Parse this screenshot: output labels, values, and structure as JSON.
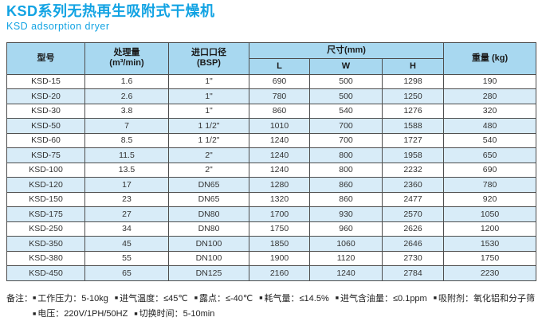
{
  "header": {
    "title_cn": "KSD系列无热再生吸附式干燥机",
    "title_en": "KSD adsorption dryer"
  },
  "colors": {
    "accent": "#12a3e3",
    "header_bg": "#a8d8f0",
    "row_alt_bg": "#d8ecf8",
    "border": "#4d4d4d",
    "text": "#333333"
  },
  "table": {
    "headers": {
      "model": "型号",
      "capacity_line1": "处理量",
      "capacity_line2": "(m³/min)",
      "inlet_line1": "进口口径",
      "inlet_line2": "(BSP)",
      "dimensions": "尺寸(mm)",
      "dim_l": "L",
      "dim_w": "W",
      "dim_h": "H",
      "weight": "重量 (kg)"
    },
    "rows": [
      {
        "model": "KSD-15",
        "capacity": "1.6",
        "inlet": "1\"",
        "l": "690",
        "w": "500",
        "h": "1298",
        "weight": "190"
      },
      {
        "model": "KSD-20",
        "capacity": "2.6",
        "inlet": "1\"",
        "l": "780",
        "w": "500",
        "h": "1250",
        "weight": "280"
      },
      {
        "model": "KSD-30",
        "capacity": "3.8",
        "inlet": "1\"",
        "l": "860",
        "w": "540",
        "h": "1276",
        "weight": "320"
      },
      {
        "model": "KSD-50",
        "capacity": "7",
        "inlet": "1 1/2\"",
        "l": "1010",
        "w": "700",
        "h": "1588",
        "weight": "480"
      },
      {
        "model": "KSD-60",
        "capacity": "8.5",
        "inlet": "1 1/2\"",
        "l": "1240",
        "w": "700",
        "h": "1727",
        "weight": "540"
      },
      {
        "model": "KSD-75",
        "capacity": "11.5",
        "inlet": "2\"",
        "l": "1240",
        "w": "800",
        "h": "1958",
        "weight": "650"
      },
      {
        "model": "KSD-100",
        "capacity": "13.5",
        "inlet": "2\"",
        "l": "1240",
        "w": "800",
        "h": "2232",
        "weight": "690"
      },
      {
        "model": "KSD-120",
        "capacity": "17",
        "inlet": "DN65",
        "l": "1280",
        "w": "860",
        "h": "2360",
        "weight": "780"
      },
      {
        "model": "KSD-150",
        "capacity": "23",
        "inlet": "DN65",
        "l": "1320",
        "w": "860",
        "h": "2477",
        "weight": "920"
      },
      {
        "model": "KSD-175",
        "capacity": "27",
        "inlet": "DN80",
        "l": "1700",
        "w": "930",
        "h": "2570",
        "weight": "1050"
      },
      {
        "model": "KSD-250",
        "capacity": "34",
        "inlet": "DN80",
        "l": "1750",
        "w": "960",
        "h": "2626",
        "weight": "1200"
      },
      {
        "model": "KSD-350",
        "capacity": "45",
        "inlet": "DN100",
        "l": "1850",
        "w": "1060",
        "h": "2646",
        "weight": "1530"
      },
      {
        "model": "KSD-380",
        "capacity": "55",
        "inlet": "DN100",
        "l": "1900",
        "w": "1120",
        "h": "2730",
        "weight": "1750"
      },
      {
        "model": "KSD-450",
        "capacity": "65",
        "inlet": "DN125",
        "l": "2160",
        "w": "1240",
        "h": "2784",
        "weight": "2230"
      }
    ]
  },
  "notes": {
    "label": "备注：",
    "line1": [
      "工作压力：5-10kg",
      "进气温度：≤45℃",
      "露点：≤-40℃",
      "耗气量：≤14.5%",
      "进气含油量：≤0.1ppm",
      "吸附剂：氧化铝和分子筛"
    ],
    "line2": [
      "电压：220V/1PH/50HZ",
      "切换时间：5-10min"
    ]
  }
}
